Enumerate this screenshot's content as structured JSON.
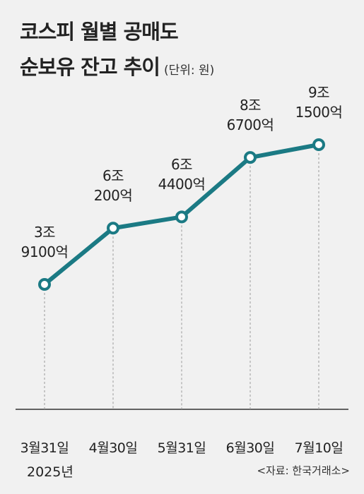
{
  "title_lines": [
    "코스피 월별 공매도",
    "순보유 잔고 추이"
  ],
  "chart_data": {
    "type": "line",
    "subtitle": "(단위: 원)",
    "categories": [
      "3월31일",
      "4월30일",
      "5월31일",
      "6월30일",
      "7월10일"
    ],
    "year_label": "2025년",
    "values": [
      3.91,
      6.02,
      6.44,
      8.67,
      9.15
    ],
    "value_labels": [
      "3조\n9100억",
      "6조\n200억",
      "6조\n4400억",
      "8조\n6700억",
      "9조\n1500억"
    ],
    "color": "#1b7a84",
    "source": "<자료: 한국거래소>"
  }
}
